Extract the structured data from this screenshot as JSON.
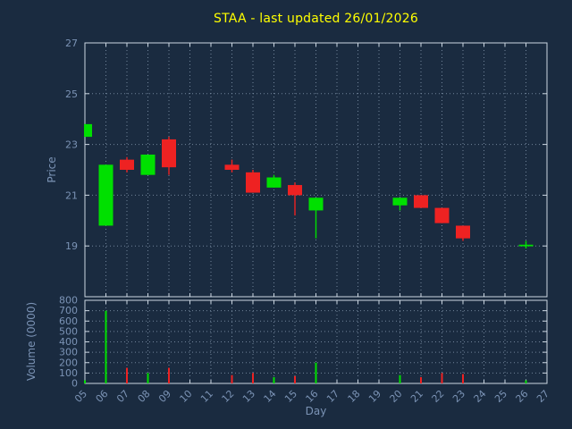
{
  "chart_data": {
    "type": "candlestick",
    "title": "STAA - last updated 26/01/2026",
    "xlabel": "Day",
    "price_ylabel": "Price",
    "volume_ylabel": "Volume (0000)",
    "legend": "none",
    "grid": "dotted",
    "x_range": [
      5,
      27
    ],
    "price_range": [
      17,
      27
    ],
    "volume_range": [
      0,
      800
    ],
    "x_ticks": [
      5,
      6,
      7,
      8,
      9,
      10,
      11,
      12,
      13,
      14,
      15,
      16,
      17,
      18,
      19,
      20,
      21,
      22,
      23,
      24,
      25,
      26,
      27
    ],
    "x_tick_labels": [
      "05",
      "06",
      "07",
      "08",
      "09",
      "10",
      "11",
      "12",
      "13",
      "14",
      "15",
      "16",
      "17",
      "18",
      "19",
      "20",
      "21",
      "22",
      "23",
      "24",
      "25",
      "26",
      "27"
    ],
    "price_ticks": [
      19,
      21,
      23,
      25,
      27
    ],
    "volume_ticks": [
      0,
      100,
      200,
      300,
      400,
      500,
      600,
      700,
      800
    ],
    "days": [
      {
        "day": 5,
        "open": 23.3,
        "high": 23.8,
        "low": 23.3,
        "close": 23.8,
        "volume": 30
      },
      {
        "day": 6,
        "open": 19.8,
        "high": 22.2,
        "low": 19.8,
        "close": 22.2,
        "volume": 700
      },
      {
        "day": 7,
        "open": 22.4,
        "high": 22.5,
        "low": 21.9,
        "close": 22.0,
        "volume": 150
      },
      {
        "day": 8,
        "open": 21.8,
        "high": 22.6,
        "low": 21.8,
        "close": 22.6,
        "volume": 100
      },
      {
        "day": 9,
        "open": 23.2,
        "high": 23.3,
        "low": 21.8,
        "close": 22.1,
        "volume": 150
      },
      {
        "day": 12,
        "open": 22.2,
        "high": 22.4,
        "low": 21.9,
        "close": 22.0,
        "volume": 80
      },
      {
        "day": 13,
        "open": 21.9,
        "high": 22.0,
        "low": 21.1,
        "close": 21.1,
        "volume": 100
      },
      {
        "day": 14,
        "open": 21.3,
        "high": 21.8,
        "low": 21.3,
        "close": 21.7,
        "volume": 60
      },
      {
        "day": 15,
        "open": 21.4,
        "high": 21.5,
        "low": 20.2,
        "close": 21.0,
        "volume": 70
      },
      {
        "day": 16,
        "open": 20.4,
        "high": 20.9,
        "low": 19.3,
        "close": 20.9,
        "volume": 200
      },
      {
        "day": 20,
        "open": 20.6,
        "high": 20.9,
        "low": 20.4,
        "close": 20.9,
        "volume": 80
      },
      {
        "day": 21,
        "open": 21.0,
        "high": 21.0,
        "low": 20.5,
        "close": 20.5,
        "volume": 60
      },
      {
        "day": 22,
        "open": 20.5,
        "high": 20.5,
        "low": 19.9,
        "close": 19.9,
        "volume": 100
      },
      {
        "day": 23,
        "open": 19.8,
        "high": 19.8,
        "low": 19.2,
        "close": 19.3,
        "volume": 90
      },
      {
        "day": 26,
        "open": 19.05,
        "high": 19.2,
        "low": 18.9,
        "close": 19.05,
        "volume": 30
      }
    ],
    "colors": {
      "background": "#1a2b40",
      "title": "#ffff00",
      "axis_text": "#7b93b5",
      "grid": "#8ea2b8",
      "border": "#ccd7e2",
      "up": "#00e000",
      "down": "#ee2222"
    }
  }
}
